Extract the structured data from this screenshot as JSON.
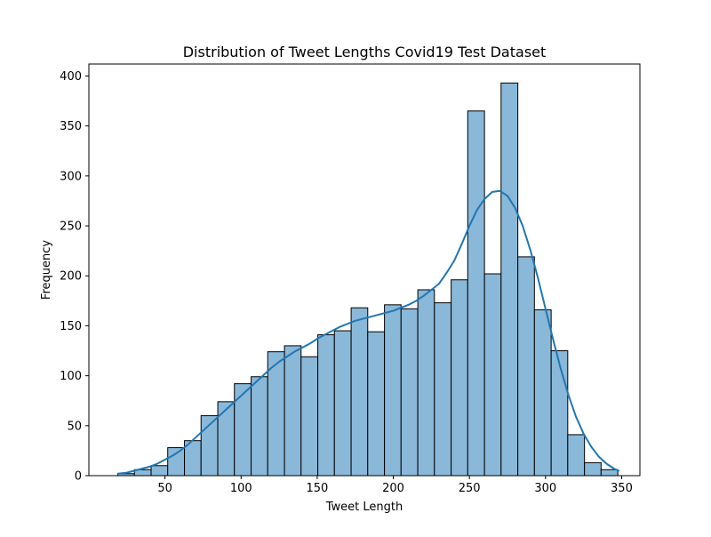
{
  "chart_data": {
    "type": "bar",
    "title": "Distribution of Tweet Lengths Covid19 Test Dataset",
    "xlabel": "Tweet Length",
    "ylabel": "Frequency",
    "xlim": [
      0,
      362
    ],
    "ylim": [
      0,
      412
    ],
    "xticks": [
      50,
      100,
      150,
      200,
      250,
      300,
      350
    ],
    "yticks": [
      0,
      50,
      100,
      150,
      200,
      250,
      300,
      350,
      400
    ],
    "grid": false,
    "bar_color": "#8ab8d9",
    "line_color": "#1f77b4",
    "bins": [
      {
        "x0": 19.0,
        "x1": 29.9,
        "count": 2
      },
      {
        "x0": 29.9,
        "x1": 40.9,
        "count": 6
      },
      {
        "x0": 40.9,
        "x1": 51.8,
        "count": 10
      },
      {
        "x0": 51.8,
        "x1": 62.8,
        "count": 28
      },
      {
        "x0": 62.8,
        "x1": 73.7,
        "count": 35
      },
      {
        "x0": 73.7,
        "x1": 84.7,
        "count": 60
      },
      {
        "x0": 84.7,
        "x1": 95.6,
        "count": 74
      },
      {
        "x0": 95.6,
        "x1": 106.6,
        "count": 92
      },
      {
        "x0": 106.6,
        "x1": 117.5,
        "count": 99
      },
      {
        "x0": 117.5,
        "x1": 128.5,
        "count": 124
      },
      {
        "x0": 128.5,
        "x1": 139.4,
        "count": 130
      },
      {
        "x0": 139.4,
        "x1": 150.4,
        "count": 119
      },
      {
        "x0": 150.4,
        "x1": 161.3,
        "count": 141
      },
      {
        "x0": 161.3,
        "x1": 172.3,
        "count": 145
      },
      {
        "x0": 172.3,
        "x1": 183.2,
        "count": 168
      },
      {
        "x0": 183.2,
        "x1": 194.2,
        "count": 144
      },
      {
        "x0": 194.2,
        "x1": 205.1,
        "count": 171
      },
      {
        "x0": 205.1,
        "x1": 216.1,
        "count": 167
      },
      {
        "x0": 216.1,
        "x1": 227.0,
        "count": 186
      },
      {
        "x0": 227.0,
        "x1": 238.0,
        "count": 173
      },
      {
        "x0": 238.0,
        "x1": 248.9,
        "count": 196
      },
      {
        "x0": 248.9,
        "x1": 259.9,
        "count": 365
      },
      {
        "x0": 259.9,
        "x1": 270.8,
        "count": 202
      },
      {
        "x0": 270.8,
        "x1": 281.8,
        "count": 393
      },
      {
        "x0": 281.8,
        "x1": 292.7,
        "count": 219
      },
      {
        "x0": 292.7,
        "x1": 303.7,
        "count": 166
      },
      {
        "x0": 303.7,
        "x1": 314.6,
        "count": 125
      },
      {
        "x0": 314.6,
        "x1": 325.6,
        "count": 41
      },
      {
        "x0": 325.6,
        "x1": 336.5,
        "count": 13
      },
      {
        "x0": 336.5,
        "x1": 347.5,
        "count": 6
      }
    ],
    "kde": {
      "x": [
        19,
        25,
        30,
        35,
        40,
        45,
        50,
        55,
        60,
        65,
        70,
        75,
        80,
        85,
        90,
        95,
        100,
        105,
        110,
        115,
        120,
        125,
        130,
        135,
        140,
        145,
        150,
        155,
        160,
        165,
        170,
        175,
        180,
        185,
        190,
        195,
        200,
        205,
        210,
        215,
        220,
        225,
        230,
        235,
        240,
        245,
        250,
        255,
        260,
        265,
        270,
        275,
        280,
        285,
        290,
        295,
        300,
        305,
        310,
        315,
        320,
        325,
        330,
        335,
        340,
        345,
        348
      ],
      "y": [
        2,
        3,
        5,
        7,
        9,
        12,
        16,
        20,
        25,
        31,
        38,
        45,
        52,
        59,
        66,
        73,
        80,
        87,
        94,
        101,
        108,
        114,
        119,
        124,
        128,
        132,
        137,
        141,
        145,
        149,
        152,
        155,
        157,
        159,
        161,
        163,
        165,
        168,
        171,
        175,
        180,
        186,
        192,
        203,
        215,
        232,
        250,
        266,
        277,
        284,
        285,
        280,
        268,
        250,
        226,
        198,
        167,
        136,
        107,
        81,
        59,
        42,
        29,
        19,
        12,
        7,
        5
      ]
    }
  }
}
